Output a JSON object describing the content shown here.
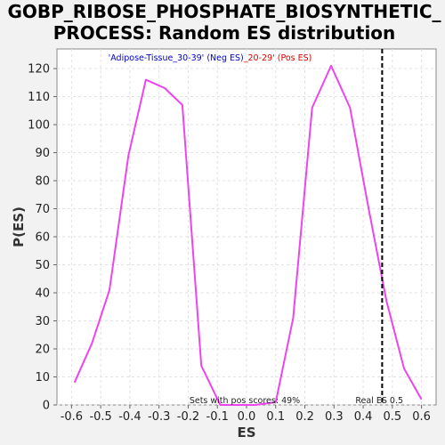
{
  "chart_data": {
    "type": "line",
    "title_line1": "GOBP_RIBOSE_PHOSPHATE_BIOSYNTHETIC_",
    "title_line2": "PROCESS: Random ES distribution",
    "xlabel": "ES",
    "ylabel": "P(ES)",
    "xlim": [
      -0.65,
      0.65
    ],
    "ylim": [
      0,
      127
    ],
    "x_ticks": [
      -0.6,
      -0.5,
      -0.4,
      -0.3,
      -0.2,
      -0.1,
      0.0,
      0.1,
      0.2,
      0.3,
      0.4,
      0.5,
      0.6
    ],
    "x_tick_labels": [
      "-0.6",
      "-0.5",
      "-0.4",
      "-0.3",
      "-0.2",
      "-0.1",
      "0.0",
      "0.1",
      "0.2",
      "0.3",
      "0.4",
      "0.5",
      "0.6"
    ],
    "y_ticks": [
      0,
      10,
      20,
      30,
      40,
      50,
      60,
      70,
      80,
      90,
      100,
      110,
      120
    ],
    "y_tick_labels": [
      "0",
      "10",
      "20",
      "30",
      "40",
      "50",
      "60",
      "70",
      "80",
      "90",
      "100",
      "110",
      "120"
    ],
    "grid": true,
    "series": [
      {
        "color": "#ee44ee",
        "x": [
          -0.59,
          -0.53,
          -0.47,
          -0.405,
          -0.345,
          -0.28,
          -0.22,
          -0.155,
          -0.09,
          -0.03,
          0.03,
          0.1,
          0.16,
          0.225,
          0.29,
          0.355,
          0.415,
          0.48,
          0.54,
          0.6
        ],
        "y": [
          8,
          22,
          41,
          89,
          116,
          113,
          107,
          14,
          0,
          0,
          0,
          1,
          31,
          106,
          121,
          106,
          72,
          37,
          13,
          2
        ]
      }
    ],
    "real_es": {
      "value": 0.465,
      "label": "Real ES 0.5"
    },
    "legend_neg_text": "'Adipose-Tissue_30-39' (Neg ES)",
    "legend_pos_text": "_20-29' (Pos ES)",
    "legend_neg_color": "#0000cc",
    "legend_pos_color": "#dd0000",
    "pos_scores_text": "Sets with pos scores: 49%"
  }
}
